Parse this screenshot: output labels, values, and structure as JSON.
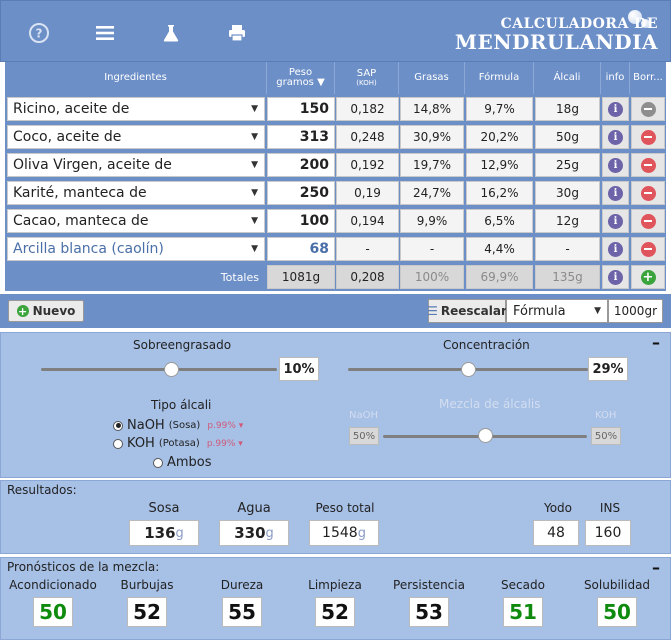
{
  "header": {
    "logo_line1": "CALCULADORA DE",
    "logo_line2": "MENDRULANDIA",
    "icons": [
      "help-icon",
      "menu-icon",
      "flask-icon",
      "printer-icon"
    ]
  },
  "table": {
    "headers": {
      "ingredientes": "Ingredientes",
      "peso_line1": "Peso",
      "peso_line2": "gramos ▼",
      "sap_line1": "SAP",
      "sap_line2": "(KOH)",
      "grasas": "Grasas",
      "formula": "Fórmula",
      "alcali": "Álcali",
      "info": "info",
      "borrar": "Borr..."
    },
    "rows": [
      {
        "name": "Ricino, aceite de",
        "peso": "150",
        "sap": "0,182",
        "grasas": "14,8%",
        "formula": "9,7%",
        "alcali": "18g"
      },
      {
        "name": "Coco, aceite de",
        "peso": "313",
        "sap": "0,248",
        "grasas": "30,9%",
        "formula": "20,2%",
        "alcali": "50g"
      },
      {
        "name": "Oliva Virgen, aceite de",
        "peso": "200",
        "sap": "0,192",
        "grasas": "19,7%",
        "formula": "12,9%",
        "alcali": "25g"
      },
      {
        "name": "Karité, manteca de",
        "peso": "250",
        "sap": "0,19",
        "grasas": "24,7%",
        "formula": "16,2%",
        "alcali": "30g"
      },
      {
        "name": "Cacao, manteca de",
        "peso": "100",
        "sap": "0,194",
        "grasas": "9,9%",
        "formula": "6,5%",
        "alcali": "12g"
      },
      {
        "name": "Arcilla blanca (caolín)",
        "peso": "68",
        "sap": "-",
        "grasas": "-",
        "formula": "4,4%",
        "alcali": "-"
      }
    ],
    "totals": {
      "label": "Totales",
      "peso": "1081g",
      "sap": "0,208",
      "grasas": "100%",
      "formula": "69,9%",
      "alcali": "135g"
    }
  },
  "toolbar": {
    "nuevo": "Nuevo",
    "reescalar": "Reescalar",
    "mode": "Fórmula",
    "amount": "1000gr"
  },
  "settings": {
    "sobreengrasado_label": "Sobreengrasado",
    "sobreengrasado_value": "10%",
    "concentracion_label": "Concentración",
    "concentracion_value": "29%",
    "tipo_alcali_label": "Tipo álcali",
    "naoh_label": "NaOH",
    "naoh_sub": "(Sosa)",
    "naoh_purity": "p.99% ▾",
    "koh_label": "KOH",
    "koh_sub": "(Potasa)",
    "koh_purity": "p.99% ▾",
    "ambos_label": "Ambos",
    "mezcla_label": "Mezcla de álcalis",
    "mix_naoh_label": "NaOH",
    "mix_koh_label": "KOH",
    "mix_naoh_value": "50%",
    "mix_koh_value": "50%",
    "sobreengrasado_level": 0.55,
    "concentracion_level": 0.5,
    "mix_level": 0.5
  },
  "results": {
    "title": "Resultados:",
    "sosa_label": "Sosa",
    "sosa_value": "136",
    "agua_label": "Agua",
    "agua_value": "330",
    "peso_total_label": "Peso total",
    "peso_total_value": "1548",
    "unit": "g",
    "yodo_label": "Yodo",
    "yodo_value": "48",
    "ins_label": "INS",
    "ins_value": "160"
  },
  "forecast": {
    "title": "Pronósticos de la mezcla:",
    "items": [
      {
        "label": "Acondicionado",
        "value": "50",
        "color": "green"
      },
      {
        "label": "Burbujas",
        "value": "52",
        "color": "black"
      },
      {
        "label": "Dureza",
        "value": "55",
        "color": "black"
      },
      {
        "label": "Limpieza",
        "value": "52",
        "color": "black"
      },
      {
        "label": "Persistencia",
        "value": "53",
        "color": "black"
      },
      {
        "label": "Secado",
        "value": "51",
        "color": "green"
      },
      {
        "label": "Solubilidad",
        "value": "50",
        "color": "green"
      }
    ]
  },
  "colors": {
    "header_blue": "#6c8fc7",
    "panel_blue": "#a7c0e6",
    "delete_red": "#e0545c",
    "add_green": "#3ca43c",
    "info_purple": "#6c63a8",
    "good_green": "#0e8a0e"
  }
}
